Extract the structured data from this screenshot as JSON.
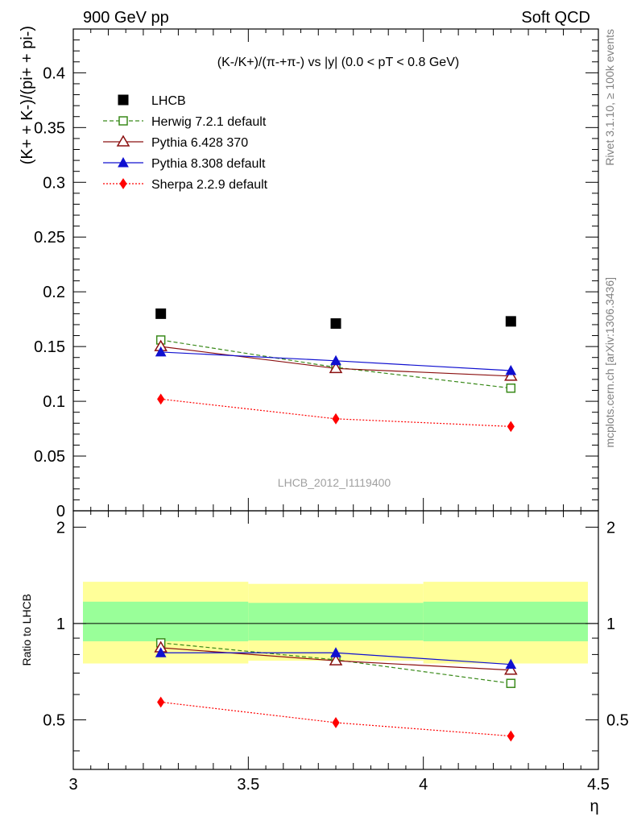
{
  "header": {
    "left": "900 GeV pp",
    "right": "Soft QCD"
  },
  "side_labels": {
    "rivet": "Rivet 3.1.10, ≥ 100k events",
    "mcplots": "mcplots.cern.ch [arXiv:1306.3436]"
  },
  "analysis_id": "LHCB_2012_I1119400",
  "colors": {
    "data": "#000000",
    "herwig": "#3a8a1a",
    "pythia6": "#8b1010",
    "pythia8": "#1010d0",
    "sherpa": "#ff0000",
    "band_inner": "#99ff99",
    "band_outer": "#ffff99"
  },
  "chart_data": [
    {
      "type": "scatter",
      "title": "(K-/K+)/(π-+π-) vs |y| (0.0 < pT < 0.8 GeV)",
      "ylabel": "(K+ + K-)/(pi+ + pi-)",
      "xlim": [
        3.0,
        4.5
      ],
      "ylim": [
        0,
        0.44
      ],
      "yticks": [
        "0",
        "0.05",
        "0.1",
        "0.15",
        "0.2",
        "0.25",
        "0.3",
        "0.35",
        "0.4"
      ],
      "legend_position": "top-left",
      "x": [
        3.25,
        3.75,
        4.25
      ],
      "series": [
        {
          "key": "data",
          "name": "LHCB",
          "marker": "filled-square",
          "line": "none",
          "values": [
            0.18,
            0.171,
            0.173
          ]
        },
        {
          "key": "herwig",
          "name": "Herwig 7.2.1 default",
          "marker": "open-square",
          "line": "dashed",
          "values": [
            0.156,
            0.131,
            0.112
          ]
        },
        {
          "key": "pythia6",
          "name": "Pythia 6.428 370",
          "marker": "open-triangle",
          "line": "solid",
          "values": [
            0.15,
            0.13,
            0.123
          ]
        },
        {
          "key": "pythia8",
          "name": "Pythia 8.308 default",
          "marker": "filled-triangle",
          "line": "solid",
          "values": [
            0.145,
            0.137,
            0.128
          ]
        },
        {
          "key": "sherpa",
          "name": "Sherpa 2.2.9 default",
          "marker": "filled-diamond",
          "line": "dotted",
          "values": [
            0.102,
            0.084,
            0.077
          ]
        }
      ]
    },
    {
      "type": "line",
      "ylabel": "Ratio to LHCB",
      "xlabel": "η",
      "xlim": [
        3.0,
        4.5
      ],
      "ylim": [
        0.35,
        2.25
      ],
      "xticks": [
        "3",
        "3.5",
        "4",
        "4.5"
      ],
      "yticks": [
        "0.5",
        "1",
        "2"
      ],
      "scale": "log",
      "x": [
        3.25,
        3.75,
        4.25
      ],
      "bands": [
        {
          "x_edges": [
            3.0,
            3.5,
            4.0,
            4.5
          ],
          "outer": [
            [
              0.75,
              1.35
            ],
            [
              0.765,
              1.33
            ],
            [
              0.75,
              1.35
            ]
          ],
          "inner": [
            [
              0.88,
              1.17
            ],
            [
              0.885,
              1.16
            ],
            [
              0.88,
              1.17
            ]
          ]
        }
      ],
      "series": [
        {
          "key": "herwig",
          "name": "Herwig 7.2.1 default",
          "values": [
            0.87,
            0.77,
            0.65
          ]
        },
        {
          "key": "pythia6",
          "name": "Pythia 6.428 370",
          "values": [
            0.84,
            0.765,
            0.715
          ]
        },
        {
          "key": "pythia8",
          "name": "Pythia 8.308 default",
          "values": [
            0.81,
            0.81,
            0.745
          ]
        },
        {
          "key": "sherpa",
          "name": "Sherpa 2.2.9 default",
          "values": [
            0.568,
            0.49,
            0.445
          ]
        }
      ]
    }
  ]
}
